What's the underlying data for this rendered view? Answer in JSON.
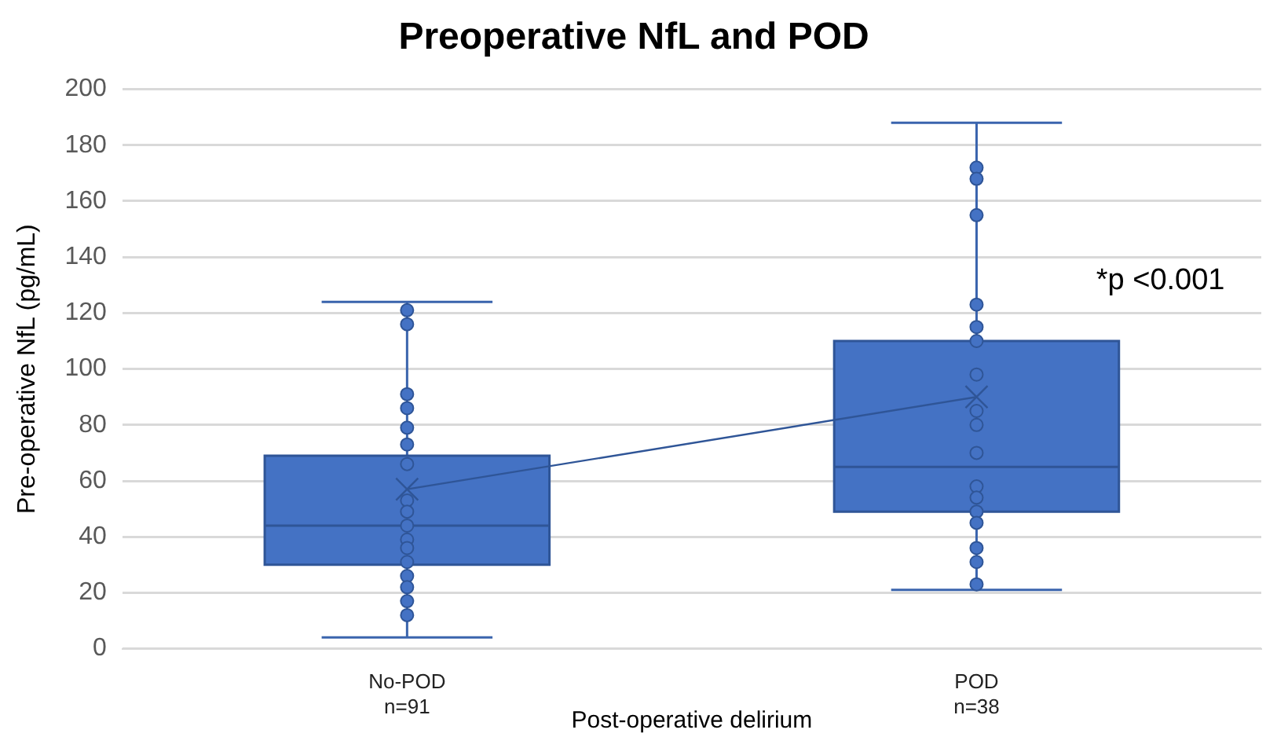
{
  "chart_data": {
    "type": "box",
    "title": "Preoperative NfL and POD",
    "xlabel": "Post-operative delirium",
    "ylabel": "Pre-operative NfL (pg/mL)",
    "categories": [
      "No-POD\nn=91",
      "POD\nn=38"
    ],
    "color": "#4472c4",
    "boxes": [
      {
        "low": 4,
        "q1": 30,
        "median": 44,
        "q3": 69,
        "high": 124,
        "mean": 57
      },
      {
        "low": 21,
        "q1": 49,
        "median": 65,
        "q3": 110,
        "high": 188,
        "mean": 90
      }
    ],
    "series": [
      {
        "type": "line",
        "color": "#2f5597",
        "marker": "none",
        "x": [
          "No-POD\nn=91",
          "POD\nn=38"
        ],
        "values": [
          57,
          90
        ]
      },
      {
        "type": "scatter",
        "color": "#4472c4",
        "x": [
          "No-POD\nn=91",
          "No-POD\nn=91",
          "No-POD\nn=91",
          "No-POD\nn=91",
          "No-POD\nn=91",
          "No-POD\nn=91",
          "No-POD\nn=91",
          "No-POD\nn=91",
          "No-POD\nn=91",
          "No-POD\nn=91",
          "No-POD\nn=91",
          "No-POD\nn=91",
          "No-POD\nn=91",
          "No-POD\nn=91",
          "No-POD\nn=91",
          "No-POD\nn=91",
          "No-POD\nn=91"
        ],
        "values": [
          121,
          116,
          91,
          86,
          79,
          73,
          66,
          53,
          49,
          44,
          39,
          36,
          31,
          26,
          22,
          17,
          12
        ]
      },
      {
        "type": "scatter",
        "color": "#4472c4",
        "x": [
          "POD\nn=38",
          "POD\nn=38",
          "POD\nn=38",
          "POD\nn=38",
          "POD\nn=38",
          "POD\nn=38",
          "POD\nn=38",
          "POD\nn=38",
          "POD\nn=38",
          "POD\nn=38",
          "POD\nn=38",
          "POD\nn=38",
          "POD\nn=38",
          "POD\nn=38",
          "POD\nn=38",
          "POD\nn=38",
          "POD\nn=38"
        ],
        "values": [
          172,
          168,
          155,
          123,
          115,
          110,
          98,
          85,
          80,
          70,
          58,
          54,
          49,
          45,
          36,
          31,
          23
        ]
      }
    ],
    "ylim": [
      0,
      200
    ],
    "yticks": [
      0,
      20,
      40,
      60,
      80,
      100,
      120,
      140,
      160,
      180,
      200
    ],
    "grid": "y",
    "legend": false,
    "marker": "circle",
    "annotations": [
      "*p <0.001"
    ]
  }
}
